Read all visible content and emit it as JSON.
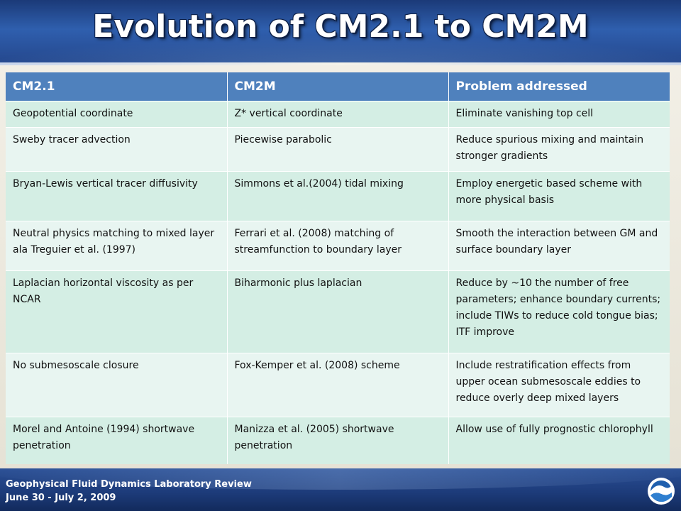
{
  "slide": {
    "title": "Evolution of CM2.1 to CM2M"
  },
  "table": {
    "headers": [
      "CM2.1",
      "CM2M",
      "Problem addressed"
    ],
    "rows": [
      [
        "Geopotential coordinate",
        "Z* vertical coordinate",
        "Eliminate vanishing top cell"
      ],
      [
        "Sweby tracer advection",
        "Piecewise parabolic",
        "Reduce spurious mixing and maintain stronger gradients"
      ],
      [
        "Bryan-Lewis vertical tracer diffusivity",
        "Simmons et al.(2004) tidal mixing",
        "Employ energetic based scheme with more physical basis"
      ],
      [
        "Neutral physics matching to mixed layer ala Treguier et al. (1997)",
        "Ferrari et al. (2008) matching of streamfunction to boundary layer",
        "Smooth the interaction between GM and surface boundary layer"
      ],
      [
        "Laplacian horizontal viscosity as per NCAR",
        "Biharmonic plus laplacian",
        "Reduce by ~10 the number of free parameters; enhance boundary currents; include TIWs to reduce cold tongue bias; ITF improve"
      ],
      [
        "No submesoscale closure",
        "Fox-Kemper et al. (2008) scheme",
        "Include restratification effects from upper ocean submesoscale eddies to reduce overly deep mixed layers"
      ],
      [
        "Morel and Antoine (1994) shortwave penetration",
        "Manizza et al. (2005) shortwave penetration",
        "Allow use of fully prognostic chlorophyll"
      ]
    ]
  },
  "footer": {
    "line1": "Geophysical Fluid Dynamics Laboratory Review",
    "line2": "June 30 - July 2, 2009",
    "logo_icon": "noaa-logo-icon"
  },
  "colors": {
    "header_bg": "#4f81bd",
    "row_dark": "#d4eee4",
    "row_light": "#e8f5f1",
    "band": "#24468b"
  }
}
